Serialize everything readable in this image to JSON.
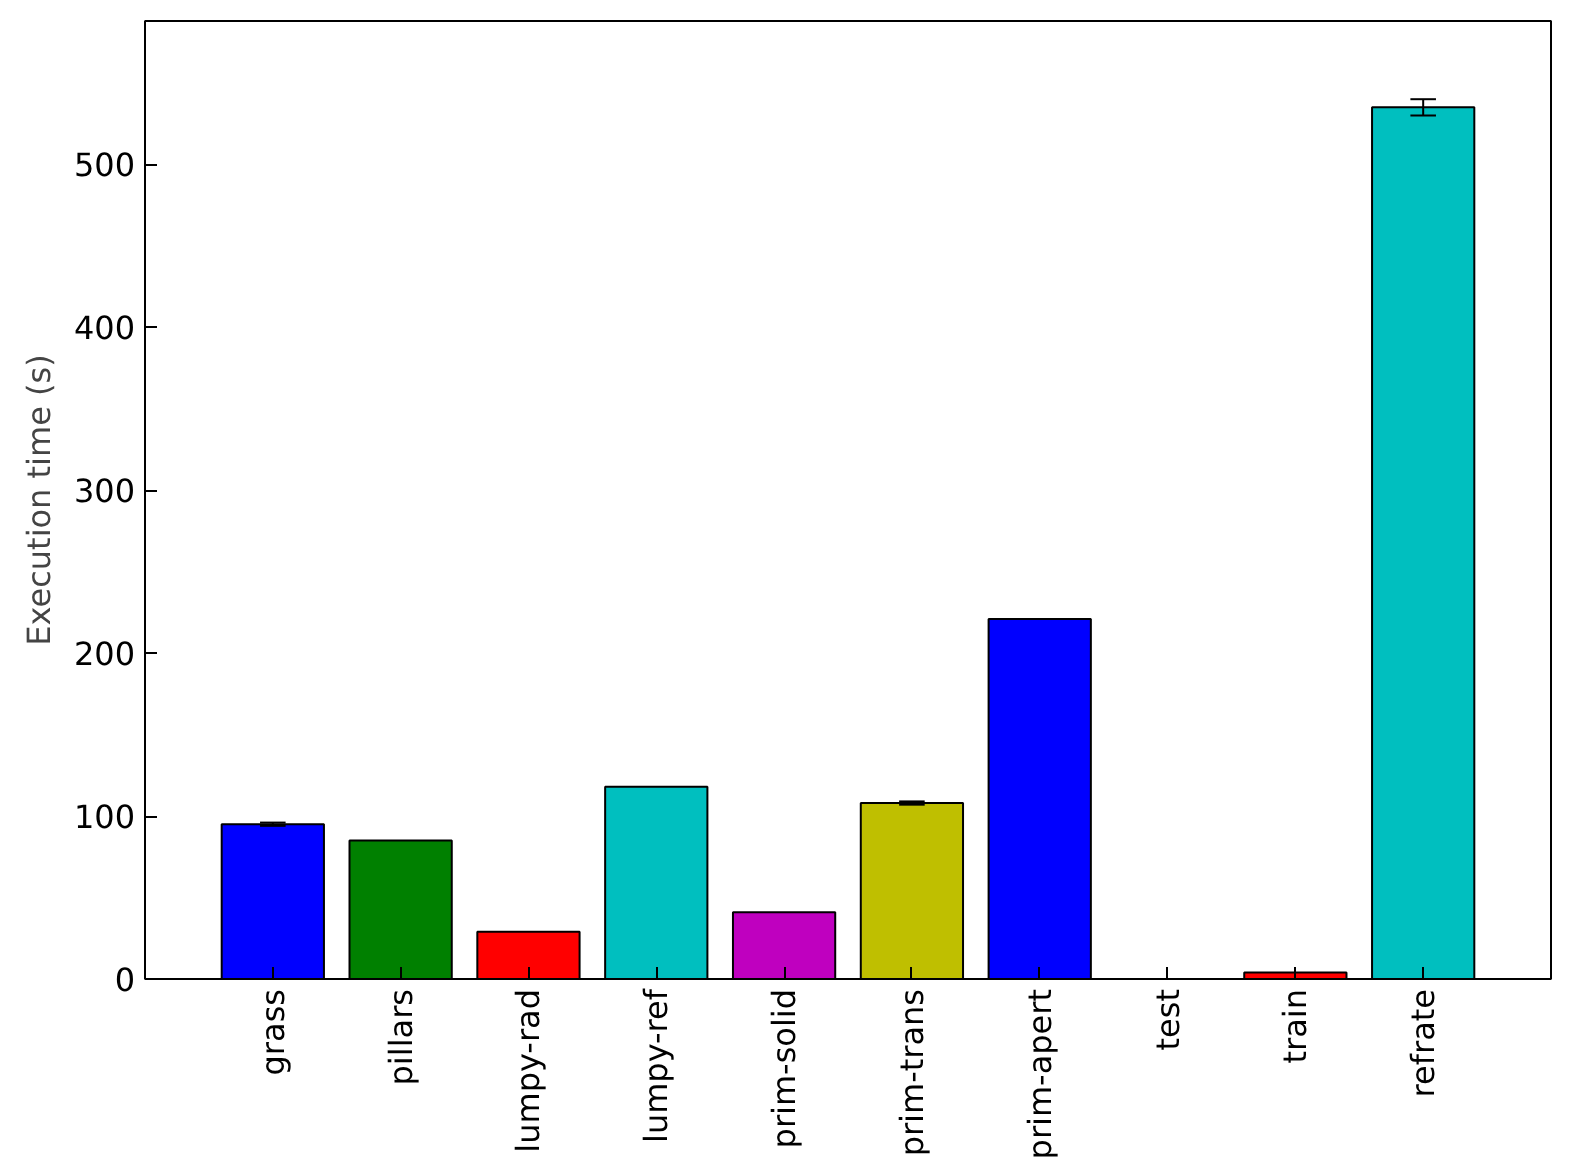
{
  "chart_data": {
    "type": "bar",
    "ylabel": "Execution time (s)",
    "categories": [
      "grass",
      "pillars",
      "lumpy-rad",
      "lumpy-ref",
      "prim-solid",
      "prim-trans",
      "prim-apert",
      "test",
      "train",
      "refrate"
    ],
    "values": [
      95,
      85,
      29,
      118,
      41,
      108,
      221,
      null,
      4,
      535
    ],
    "colors": [
      "#0000ff",
      "#008000",
      "#ff0000",
      "#00bfbf",
      "#bf00bf",
      "#bfbf00",
      "#0000ff",
      "#008000",
      "#ff0000",
      "#00bfbf"
    ],
    "errors": [
      1,
      null,
      null,
      null,
      null,
      1,
      null,
      null,
      null,
      5
    ],
    "ylim": [
      0,
      588
    ],
    "yticks": [
      0,
      100,
      200,
      300,
      400,
      500
    ],
    "grid": false
  }
}
